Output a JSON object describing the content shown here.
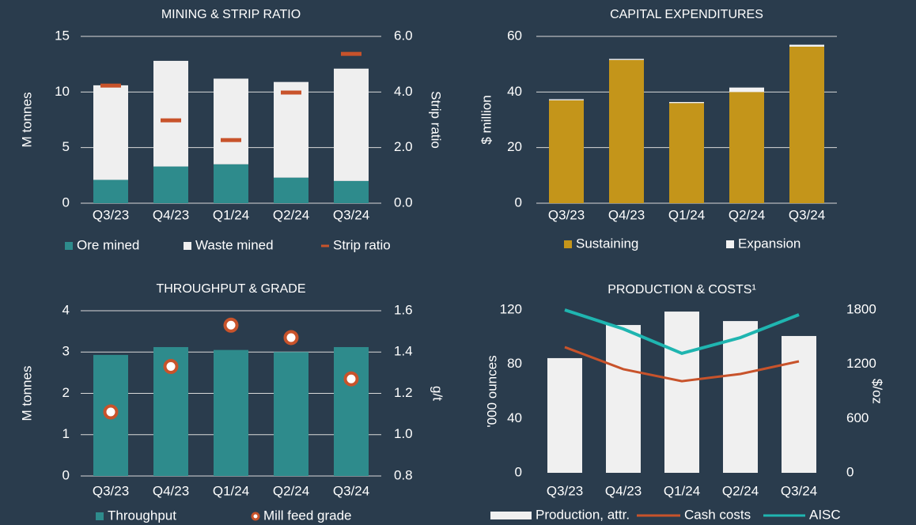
{
  "chart_data": [
    {
      "type": "stacked_bar",
      "title": "MINING & STRIP RATIO",
      "categories": [
        "Q3/23",
        "Q4/23",
        "Q1/24",
        "Q2/24",
        "Q3/24"
      ],
      "ylabel": "M tonnes",
      "y2label": "Strip ratio",
      "ylim": [
        0,
        15
      ],
      "yticks": [
        0,
        5,
        10,
        15
      ],
      "y2lim": [
        0,
        6
      ],
      "y2ticks": [
        {
          "value": 0,
          "label": "0.0"
        },
        {
          "value": 2,
          "label": "2.0"
        },
        {
          "value": 4,
          "label": "4.0"
        },
        {
          "value": 6,
          "label": "6.0"
        }
      ],
      "grid": true,
      "series": [
        {
          "name": "Ore mined",
          "color": "#2e8b8c",
          "mark": "bar",
          "values": [
            2.1,
            3.3,
            3.5,
            2.3,
            2.0
          ]
        },
        {
          "name": "Waste mined",
          "color": "#efefef",
          "mark": "bar",
          "values": [
            8.5,
            9.5,
            7.7,
            8.6,
            10.1
          ]
        },
        {
          "name": "Strip ratio",
          "color": "#c8532b",
          "mark": "dash",
          "axis": "y2",
          "values": [
            4.23,
            2.98,
            2.27,
            3.98,
            5.37
          ]
        }
      ]
    },
    {
      "type": "stacked_bar",
      "title": "CAPITAL EXPENDITURES",
      "categories": [
        "Q3/23",
        "Q4/23",
        "Q1/24",
        "Q2/24",
        "Q3/24"
      ],
      "ylabel": "$ million",
      "ylim": [
        0,
        60
      ],
      "yticks": [
        0,
        20,
        40,
        60
      ],
      "grid": true,
      "series": [
        {
          "name": "Sustaining",
          "color": "#c4951a",
          "mark": "bar",
          "values": [
            37.0,
            51.5,
            36.0,
            40.0,
            56.3
          ]
        },
        {
          "name": "Expansion",
          "color": "#f2f2f2",
          "mark": "bar",
          "values": [
            0.4,
            0.4,
            0.4,
            1.6,
            0.7
          ]
        }
      ]
    },
    {
      "type": "combo",
      "title": "THROUGHPUT & GRADE",
      "categories": [
        "Q3/23",
        "Q4/23",
        "Q1/24",
        "Q2/24",
        "Q3/24"
      ],
      "ylabel": "M tonnes",
      "y2label": "g/t",
      "ylim": [
        0,
        4
      ],
      "yticks": [
        0,
        1,
        2,
        3,
        4
      ],
      "y2lim": [
        0.8,
        1.6
      ],
      "y2ticks": [
        0.8,
        {
          "value": 1,
          "label": "1.0"
        },
        1.2,
        1.4,
        1.6
      ],
      "grid": true,
      "series": [
        {
          "name": "Throughput",
          "color": "#2e8b8c",
          "mark": "bar",
          "values": [
            2.93,
            3.12,
            3.05,
            3.0,
            3.12
          ]
        },
        {
          "name": "Mill feed grade",
          "color": "#c8532b",
          "mark": "dot",
          "axis": "y2",
          "values": [
            1.11,
            1.33,
            1.53,
            1.47,
            1.27
          ]
        }
      ]
    },
    {
      "type": "combo",
      "title": "PRODUCTION & COSTS¹",
      "categories": [
        "Q3/23",
        "Q4/23",
        "Q1/24",
        "Q2/24",
        "Q3/24"
      ],
      "ylabel": "'000 ounces",
      "y2label": "$/oz",
      "ylim": [
        0,
        120
      ],
      "yticks": [
        0,
        40,
        80,
        120
      ],
      "y2lim": [
        0,
        1800
      ],
      "y2ticks": [
        0,
        600,
        1200,
        1800
      ],
      "grid": false,
      "series": [
        {
          "name": "Production, attr.",
          "color": "#f0f0f0",
          "mark": "bar",
          "values": [
            84.5,
            108.9,
            118.8,
            111.8,
            100.8
          ]
        },
        {
          "name": "Cash costs",
          "color": "#c8532b",
          "mark": "line",
          "axis": "y2",
          "values": [
            1389,
            1145,
            1013,
            1092,
            1232
          ]
        },
        {
          "name": "AISC",
          "color": "#1fb5b0",
          "mark": "line",
          "axis": "y2",
          "values": [
            1800,
            1590,
            1320,
            1494,
            1748
          ]
        }
      ]
    }
  ]
}
